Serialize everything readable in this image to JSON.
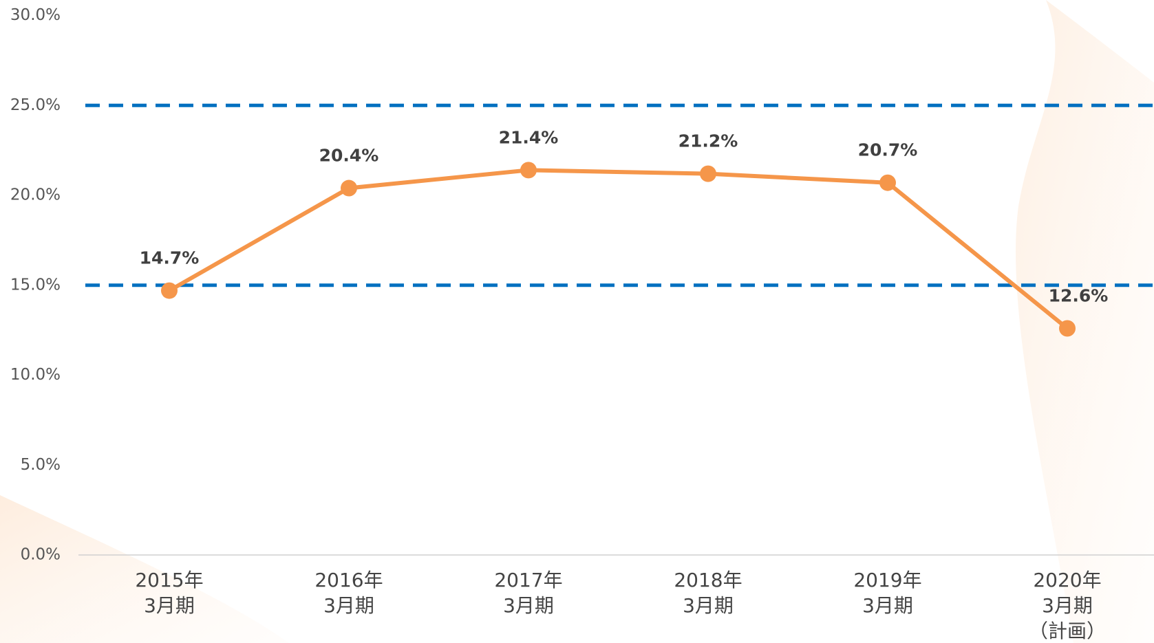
{
  "chart_data": {
    "type": "line",
    "categories": [
      [
        "2015年",
        "3月期"
      ],
      [
        "2016年",
        "3月期"
      ],
      [
        "2017年",
        "3月期"
      ],
      [
        "2018年",
        "3月期"
      ],
      [
        "2019年",
        "3月期"
      ],
      [
        "2020年",
        "3月期",
        "（計画）"
      ]
    ],
    "series": [
      {
        "color": "#f5964a",
        "values": [
          14.7,
          20.4,
          21.4,
          21.2,
          20.7,
          12.6
        ],
        "value_labels": [
          "14.7%",
          "20.4%",
          "21.4%",
          "21.2%",
          "20.7%",
          "12.6%"
        ]
      }
    ],
    "ylim": [
      0,
      30
    ],
    "yticks": [
      {
        "value": 0,
        "label": "0.0%"
      },
      {
        "value": 5,
        "label": "5.0%"
      },
      {
        "value": 10,
        "label": "10.0%"
      },
      {
        "value": 15,
        "label": "15.0%"
      },
      {
        "value": 20,
        "label": "20.0%"
      },
      {
        "value": 25,
        "label": "25.0%"
      },
      {
        "value": 30,
        "label": "30.0%"
      }
    ],
    "reference_lines": [
      15,
      25
    ],
    "reference_color": "#0070c0"
  }
}
